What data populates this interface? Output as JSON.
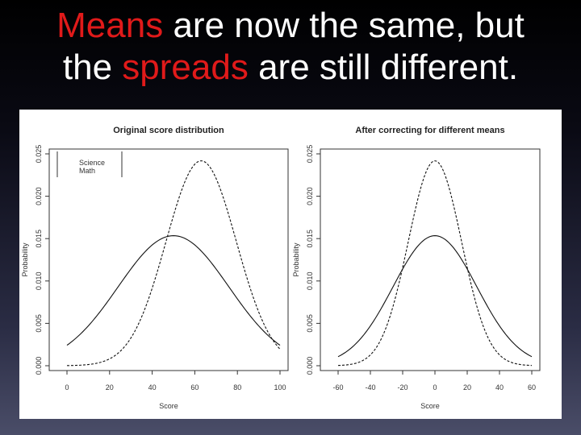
{
  "slide": {
    "title_line1_highlight": "Means",
    "title_line1_rest": " are now the same, but",
    "title_line2_start": "the ",
    "title_line2_highlight": "spreads",
    "title_line2_rest": " are still different.",
    "highlight_color": "#e01a1a",
    "text_color": "#ffffff"
  },
  "chart_data": [
    {
      "type": "line",
      "title": "Original score distribution",
      "xlabel": "Score",
      "ylabel": "Probability",
      "xlim": [
        0,
        100
      ],
      "ylim": [
        0,
        0.025
      ],
      "xticks": [
        0,
        20,
        40,
        60,
        80,
        100
      ],
      "yticks": [
        0.0,
        0.005,
        0.01,
        0.015,
        0.02,
        0.025
      ],
      "ytick_labels": [
        "0.000",
        "0.005",
        "0.010",
        "0.015",
        "0.020",
        "0.025"
      ],
      "legend": {
        "placement": "top-left",
        "entries": [
          "Science",
          "Math"
        ]
      },
      "series": [
        {
          "name": "Science",
          "style": "dashed",
          "mean": 63,
          "sd": 16.5,
          "x": [
            0,
            10,
            20,
            30,
            40,
            50,
            60,
            63,
            70,
            80,
            90,
            100
          ],
          "y": [
            0.0001,
            0.0007,
            0.0026,
            0.0068,
            0.0127,
            0.0197,
            0.0238,
            0.0242,
            0.0222,
            0.0144,
            0.0064,
            0.002
          ]
        },
        {
          "name": "Math",
          "style": "solid",
          "mean": 50,
          "sd": 26,
          "x": [
            0,
            10,
            20,
            30,
            40,
            50,
            60,
            70,
            80,
            90,
            100
          ],
          "y": [
            0.0024,
            0.0047,
            0.0078,
            0.0114,
            0.0143,
            0.0153,
            0.0143,
            0.0114,
            0.0078,
            0.0047,
            0.0024
          ]
        }
      ]
    },
    {
      "type": "line",
      "title": "After correcting for different means",
      "xlabel": "Score",
      "ylabel": "Probability",
      "xlim": [
        -60,
        60
      ],
      "ylim": [
        0,
        0.025
      ],
      "xticks": [
        -60,
        -40,
        -20,
        0,
        20,
        40,
        60
      ],
      "yticks": [
        0.0,
        0.005,
        0.01,
        0.015,
        0.02,
        0.025
      ],
      "ytick_labels": [
        "0.000",
        "0.005",
        "0.010",
        "0.015",
        "0.020",
        "0.025"
      ],
      "series": [
        {
          "style": "dashed",
          "mean": 0,
          "sd": 16.5,
          "x": [
            -60,
            -40,
            -20,
            -10,
            0,
            10,
            20,
            40,
            60
          ],
          "y": [
            0.0,
            0.0014,
            0.0116,
            0.0201,
            0.0242,
            0.0201,
            0.0116,
            0.0014,
            0.0
          ]
        },
        {
          "style": "solid",
          "mean": 0,
          "sd": 26,
          "x": [
            -60,
            -40,
            -20,
            0,
            20,
            40,
            60
          ],
          "y": [
            0.0011,
            0.0047,
            0.0114,
            0.0153,
            0.0114,
            0.0047,
            0.0011
          ]
        }
      ]
    }
  ]
}
